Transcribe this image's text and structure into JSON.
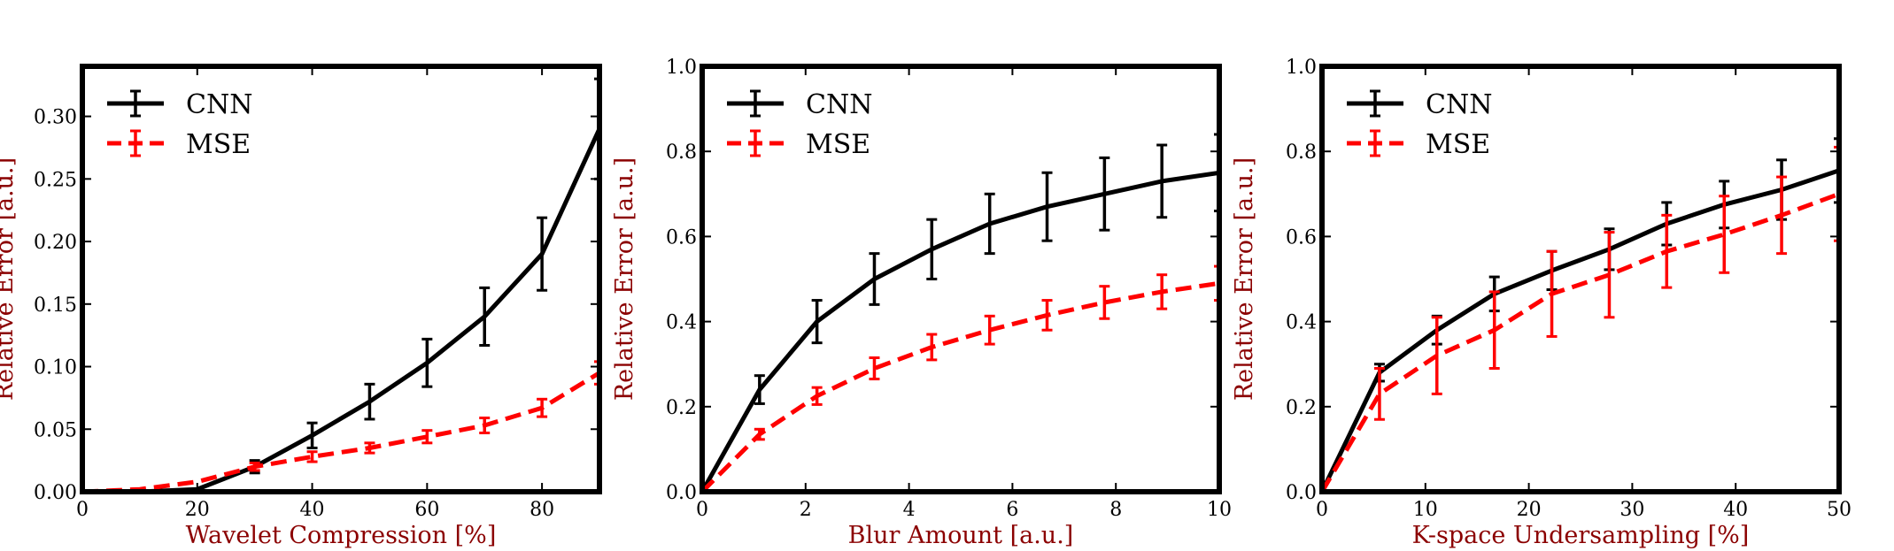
{
  "chart_data": [
    {
      "type": "line",
      "title": "",
      "xlabel": "Wavelet Compression [%]",
      "ylabel": "Relative Error [a.u.]",
      "xlim": [
        0,
        90
      ],
      "ylim": [
        0,
        0.34
      ],
      "xticks": [
        0,
        20,
        40,
        60,
        80
      ],
      "xtick_labels": [
        "0",
        "20",
        "40",
        "60",
        "80"
      ],
      "yticks": [
        0,
        0.05,
        0.1,
        0.15,
        0.2,
        0.25,
        0.3
      ],
      "ytick_labels": [
        "0.00",
        "0.05",
        "0.10",
        "0.15",
        "0.20",
        "0.25",
        "0.30"
      ],
      "legend": "top-left",
      "series": [
        {
          "name": "CNN",
          "color": "#000000",
          "style": "solid",
          "x": [
            0,
            10,
            20,
            30,
            40,
            50,
            60,
            70,
            80,
            90
          ],
          "y": [
            0.0,
            0.0,
            0.002,
            0.02,
            0.045,
            0.072,
            0.103,
            0.14,
            0.19,
            0.29
          ],
          "err": [
            0.0,
            0.0,
            0.0,
            0.005,
            0.01,
            0.014,
            0.019,
            0.023,
            0.029,
            0.04
          ]
        },
        {
          "name": "MSE",
          "color": "#ff0000",
          "style": "dashed",
          "x": [
            0,
            10,
            20,
            30,
            40,
            50,
            60,
            70,
            80,
            90
          ],
          "y": [
            0.0,
            0.002,
            0.008,
            0.02,
            0.028,
            0.035,
            0.044,
            0.053,
            0.067,
            0.095
          ],
          "err": [
            0.0,
            0.0,
            0.0,
            0.003,
            0.004,
            0.004,
            0.005,
            0.006,
            0.007,
            0.009
          ]
        }
      ]
    },
    {
      "type": "line",
      "title": "",
      "xlabel": "Blur Amount [a.u.]",
      "ylabel": "Relative Error [a.u.]",
      "xlim": [
        0,
        10
      ],
      "ylim": [
        0,
        1.0
      ],
      "xticks": [
        0,
        2,
        4,
        6,
        8,
        10
      ],
      "xtick_labels": [
        "0",
        "2",
        "4",
        "6",
        "8",
        "10"
      ],
      "yticks": [
        0,
        0.2,
        0.4,
        0.6,
        0.8,
        1.0
      ],
      "ytick_labels": [
        "0.0",
        "0.2",
        "0.4",
        "0.6",
        "0.8",
        "1.0"
      ],
      "legend": "top-left",
      "series": [
        {
          "name": "CNN",
          "color": "#000000",
          "style": "solid",
          "x": [
            0,
            1.11,
            2.22,
            3.33,
            4.44,
            5.56,
            6.67,
            7.78,
            8.89,
            10
          ],
          "y": [
            0.0,
            0.24,
            0.4,
            0.5,
            0.57,
            0.63,
            0.67,
            0.7,
            0.73,
            0.75
          ],
          "err": [
            0.0,
            0.033,
            0.05,
            0.06,
            0.07,
            0.07,
            0.08,
            0.085,
            0.085,
            0.09
          ]
        },
        {
          "name": "MSE",
          "color": "#ff0000",
          "style": "dashed",
          "x": [
            0,
            1.11,
            2.22,
            3.33,
            4.44,
            5.56,
            6.67,
            7.78,
            8.89,
            10
          ],
          "y": [
            0.0,
            0.135,
            0.225,
            0.29,
            0.34,
            0.38,
            0.415,
            0.445,
            0.47,
            0.49
          ],
          "err": [
            0.0,
            0.012,
            0.02,
            0.025,
            0.03,
            0.033,
            0.035,
            0.038,
            0.04,
            0.04
          ]
        }
      ]
    },
    {
      "type": "line",
      "title": "",
      "xlabel": "K-space Undersampling [%]",
      "ylabel": "Relative Error [a.u.]",
      "xlim": [
        0,
        50
      ],
      "ylim": [
        0,
        1.0
      ],
      "xticks": [
        0,
        10,
        20,
        30,
        40,
        50
      ],
      "xtick_labels": [
        "0",
        "10",
        "20",
        "30",
        "40",
        "50"
      ],
      "yticks": [
        0,
        0.2,
        0.4,
        0.6,
        0.8,
        1.0
      ],
      "ytick_labels": [
        "0.0",
        "0.2",
        "0.4",
        "0.6",
        "0.8",
        "1.0"
      ],
      "legend": "top-left",
      "series": [
        {
          "name": "CNN",
          "color": "#000000",
          "style": "solid",
          "x": [
            0,
            5.56,
            11.11,
            16.67,
            22.22,
            27.78,
            33.33,
            38.89,
            44.44,
            50
          ],
          "y": [
            0.0,
            0.28,
            0.38,
            0.465,
            0.52,
            0.57,
            0.63,
            0.675,
            0.71,
            0.755
          ],
          "err": [
            0.0,
            0.02,
            0.033,
            0.04,
            0.045,
            0.048,
            0.05,
            0.055,
            0.07,
            0.075
          ]
        },
        {
          "name": "MSE",
          "color": "#ff0000",
          "style": "dashed",
          "x": [
            0,
            5.56,
            11.11,
            16.67,
            22.22,
            27.78,
            33.33,
            38.89,
            44.44,
            50
          ],
          "y": [
            0.0,
            0.23,
            0.32,
            0.38,
            0.465,
            0.51,
            0.565,
            0.605,
            0.65,
            0.7
          ],
          "err": [
            0.0,
            0.06,
            0.09,
            0.09,
            0.1,
            0.1,
            0.085,
            0.09,
            0.09,
            0.11
          ]
        }
      ]
    }
  ],
  "colors": {
    "axis_label": "#8b0000",
    "frame": "#000000"
  }
}
